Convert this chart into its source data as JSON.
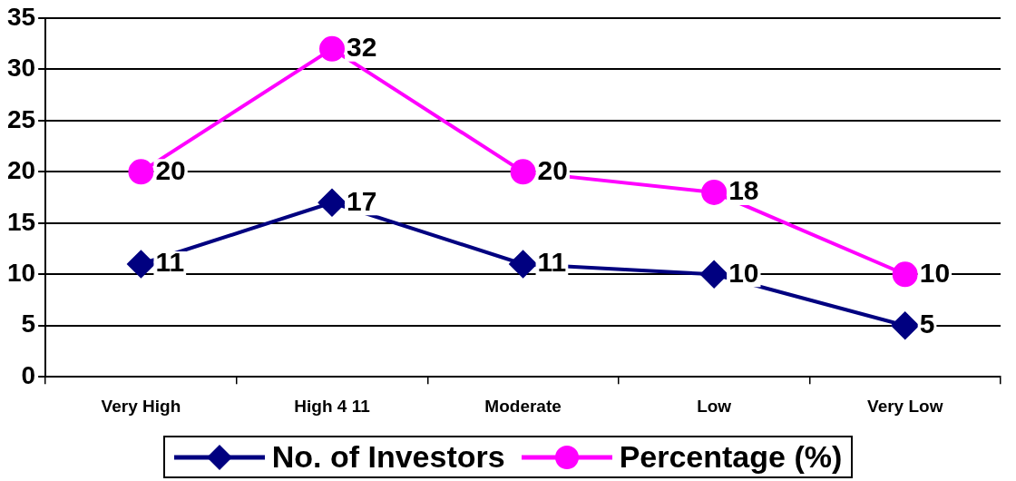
{
  "chart_data": {
    "type": "line",
    "categories": [
      "Very High",
      "High 4 11",
      "Moderate",
      "Low",
      "Very Low"
    ],
    "series": [
      {
        "name": "No. of Investors",
        "color": "#000080",
        "marker": "diamond",
        "values": [
          11,
          17,
          11,
          10,
          5
        ]
      },
      {
        "name": "Percentage (%)",
        "color": "#ff00ff",
        "marker": "circle",
        "values": [
          20,
          32,
          20,
          18,
          10
        ]
      }
    ],
    "ylim": [
      0,
      35
    ],
    "yticks": [
      0,
      5,
      10,
      15,
      20,
      25,
      30,
      35
    ],
    "grid": "y",
    "legend": "bottom",
    "data_labels": true,
    "line_style": "solid"
  }
}
